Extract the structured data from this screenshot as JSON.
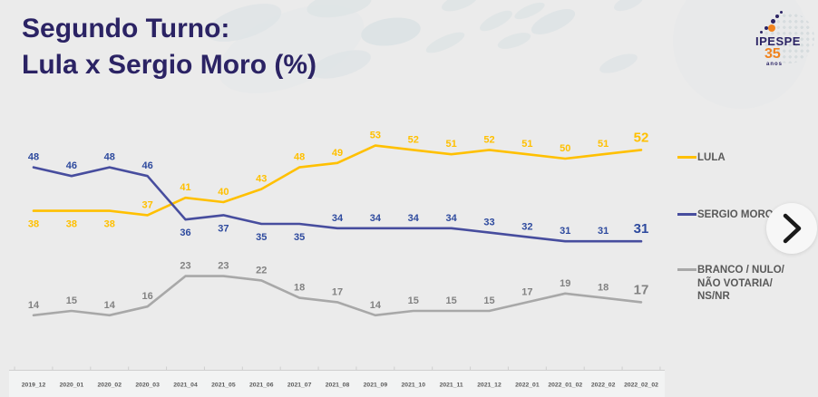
{
  "header": {
    "title_line1": "Segundo Turno:",
    "title_line2": "Lula x Sergio Moro (%)",
    "logo": {
      "name": "IPESPE",
      "years": "35",
      "years_suffix": "anos"
    }
  },
  "colors": {
    "background": "#ebebeb",
    "title": "#2b2364",
    "lula_line": "#ffc000",
    "lula_label": "#ffc000",
    "moro_line": "#474d9e",
    "moro_label": "#2e4a9e",
    "branco_line": "#a8a8a8",
    "branco_label": "#828282",
    "axis_text": "#595959",
    "axis_line": "#cfcfcf",
    "axis_band": "#f2f3f3",
    "legend_text": "#595959",
    "logo_orange": "#f0831e"
  },
  "chart_data": {
    "type": "line",
    "title": "Segundo Turno: Lula x Sergio Moro (%)",
    "xlabel": "",
    "ylabel": "",
    "grid": false,
    "legend_position": "right",
    "ylim": [
      0,
      60
    ],
    "categories": [
      "2019_12",
      "2020_01",
      "2020_02",
      "2020_03",
      "2021_04",
      "2021_05",
      "2021_06",
      "2021_07",
      "2021_08",
      "2021_09",
      "2021_10",
      "2021_11",
      "2021_12",
      "2022_01",
      "2022_01_02",
      "2022_02",
      "2022_02_02"
    ],
    "series": [
      {
        "name": "LULA",
        "color": "#ffc000",
        "label_color": "#ffc000",
        "values": [
          38,
          38,
          38,
          37,
          41,
          40,
          43,
          48,
          49,
          53,
          52,
          51,
          52,
          51,
          50,
          51,
          52
        ],
        "label_side": [
          "b",
          "b",
          "b",
          "a",
          "a",
          "a",
          "a",
          "a",
          "a",
          "a",
          "a",
          "a",
          "a",
          "a",
          "a",
          "a",
          "a"
        ]
      },
      {
        "name": "SERGIO MORO",
        "color": "#474d9e",
        "label_color": "#2e4a9e",
        "values": [
          48,
          46,
          48,
          46,
          36,
          37,
          35,
          35,
          34,
          34,
          34,
          34,
          33,
          32,
          31,
          31,
          31
        ],
        "label_side": [
          "a",
          "a",
          "a",
          "a",
          "b",
          "b",
          "b",
          "b",
          "a",
          "a",
          "a",
          "a",
          "a",
          "a",
          "a",
          "a",
          "a"
        ]
      },
      {
        "name": "BRANCO / NULO/ NÃO VOTARIA/ NS/NR",
        "color": "#a8a8a8",
        "label_color": "#828282",
        "values": [
          14,
          15,
          14,
          16,
          23,
          23,
          22,
          18,
          17,
          14,
          15,
          15,
          15,
          17,
          19,
          18,
          17
        ],
        "label_side": [
          "a",
          "a",
          "a",
          "a",
          "a",
          "a",
          "a",
          "a",
          "a",
          "a",
          "a",
          "a",
          "a",
          "a",
          "a",
          "a",
          "a"
        ]
      }
    ]
  },
  "legend": {
    "items": [
      {
        "label_lines": [
          "LULA"
        ],
        "color": "#ffc000"
      },
      {
        "label_lines": [
          "SERGIO MORO"
        ],
        "color": "#474d9e"
      },
      {
        "label_lines": [
          "BRANCO / NULO/",
          "NÃO VOTARIA/",
          "NS/NR"
        ],
        "color": "#a8a8a8"
      }
    ]
  },
  "nav": {
    "next": "next"
  }
}
